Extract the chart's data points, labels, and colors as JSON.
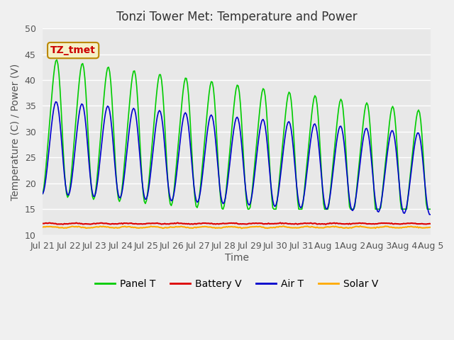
{
  "title": "Tonzi Tower Met: Temperature and Power",
  "xlabel": "Time",
  "ylabel": "Temperature (C) / Power (V)",
  "ylim": [
    10,
    50
  ],
  "n_days": 15,
  "xtick_labels": [
    "Jul 21",
    "Jul 22",
    "Jul 23",
    "Jul 24",
    "Jul 25",
    "Jul 26",
    "Jul 27",
    "Jul 28",
    "Jul 29",
    "Jul 30",
    "Jul 31",
    "Aug 1",
    "Aug 2",
    "Aug 3",
    "Aug 4",
    "Aug 5"
  ],
  "ytick_vals": [
    10,
    15,
    20,
    25,
    30,
    35,
    40,
    45,
    50
  ],
  "annotation_text": "TZ_tmet",
  "annotation_color": "#cc0000",
  "annotation_bg": "#f5f0c8",
  "annotation_border": "#bb8800",
  "fig_bg": "#f0f0f0",
  "plot_bg": "#e8e8e8",
  "panel_color": "#00cc00",
  "battery_color": "#dd0000",
  "air_color": "#0000cc",
  "solar_color": "#ffaa00",
  "legend_labels": [
    "Panel T",
    "Battery V",
    "Air T",
    "Solar V"
  ],
  "title_fontsize": 12,
  "axis_fontsize": 10,
  "tick_fontsize": 9,
  "legend_fontsize": 10
}
